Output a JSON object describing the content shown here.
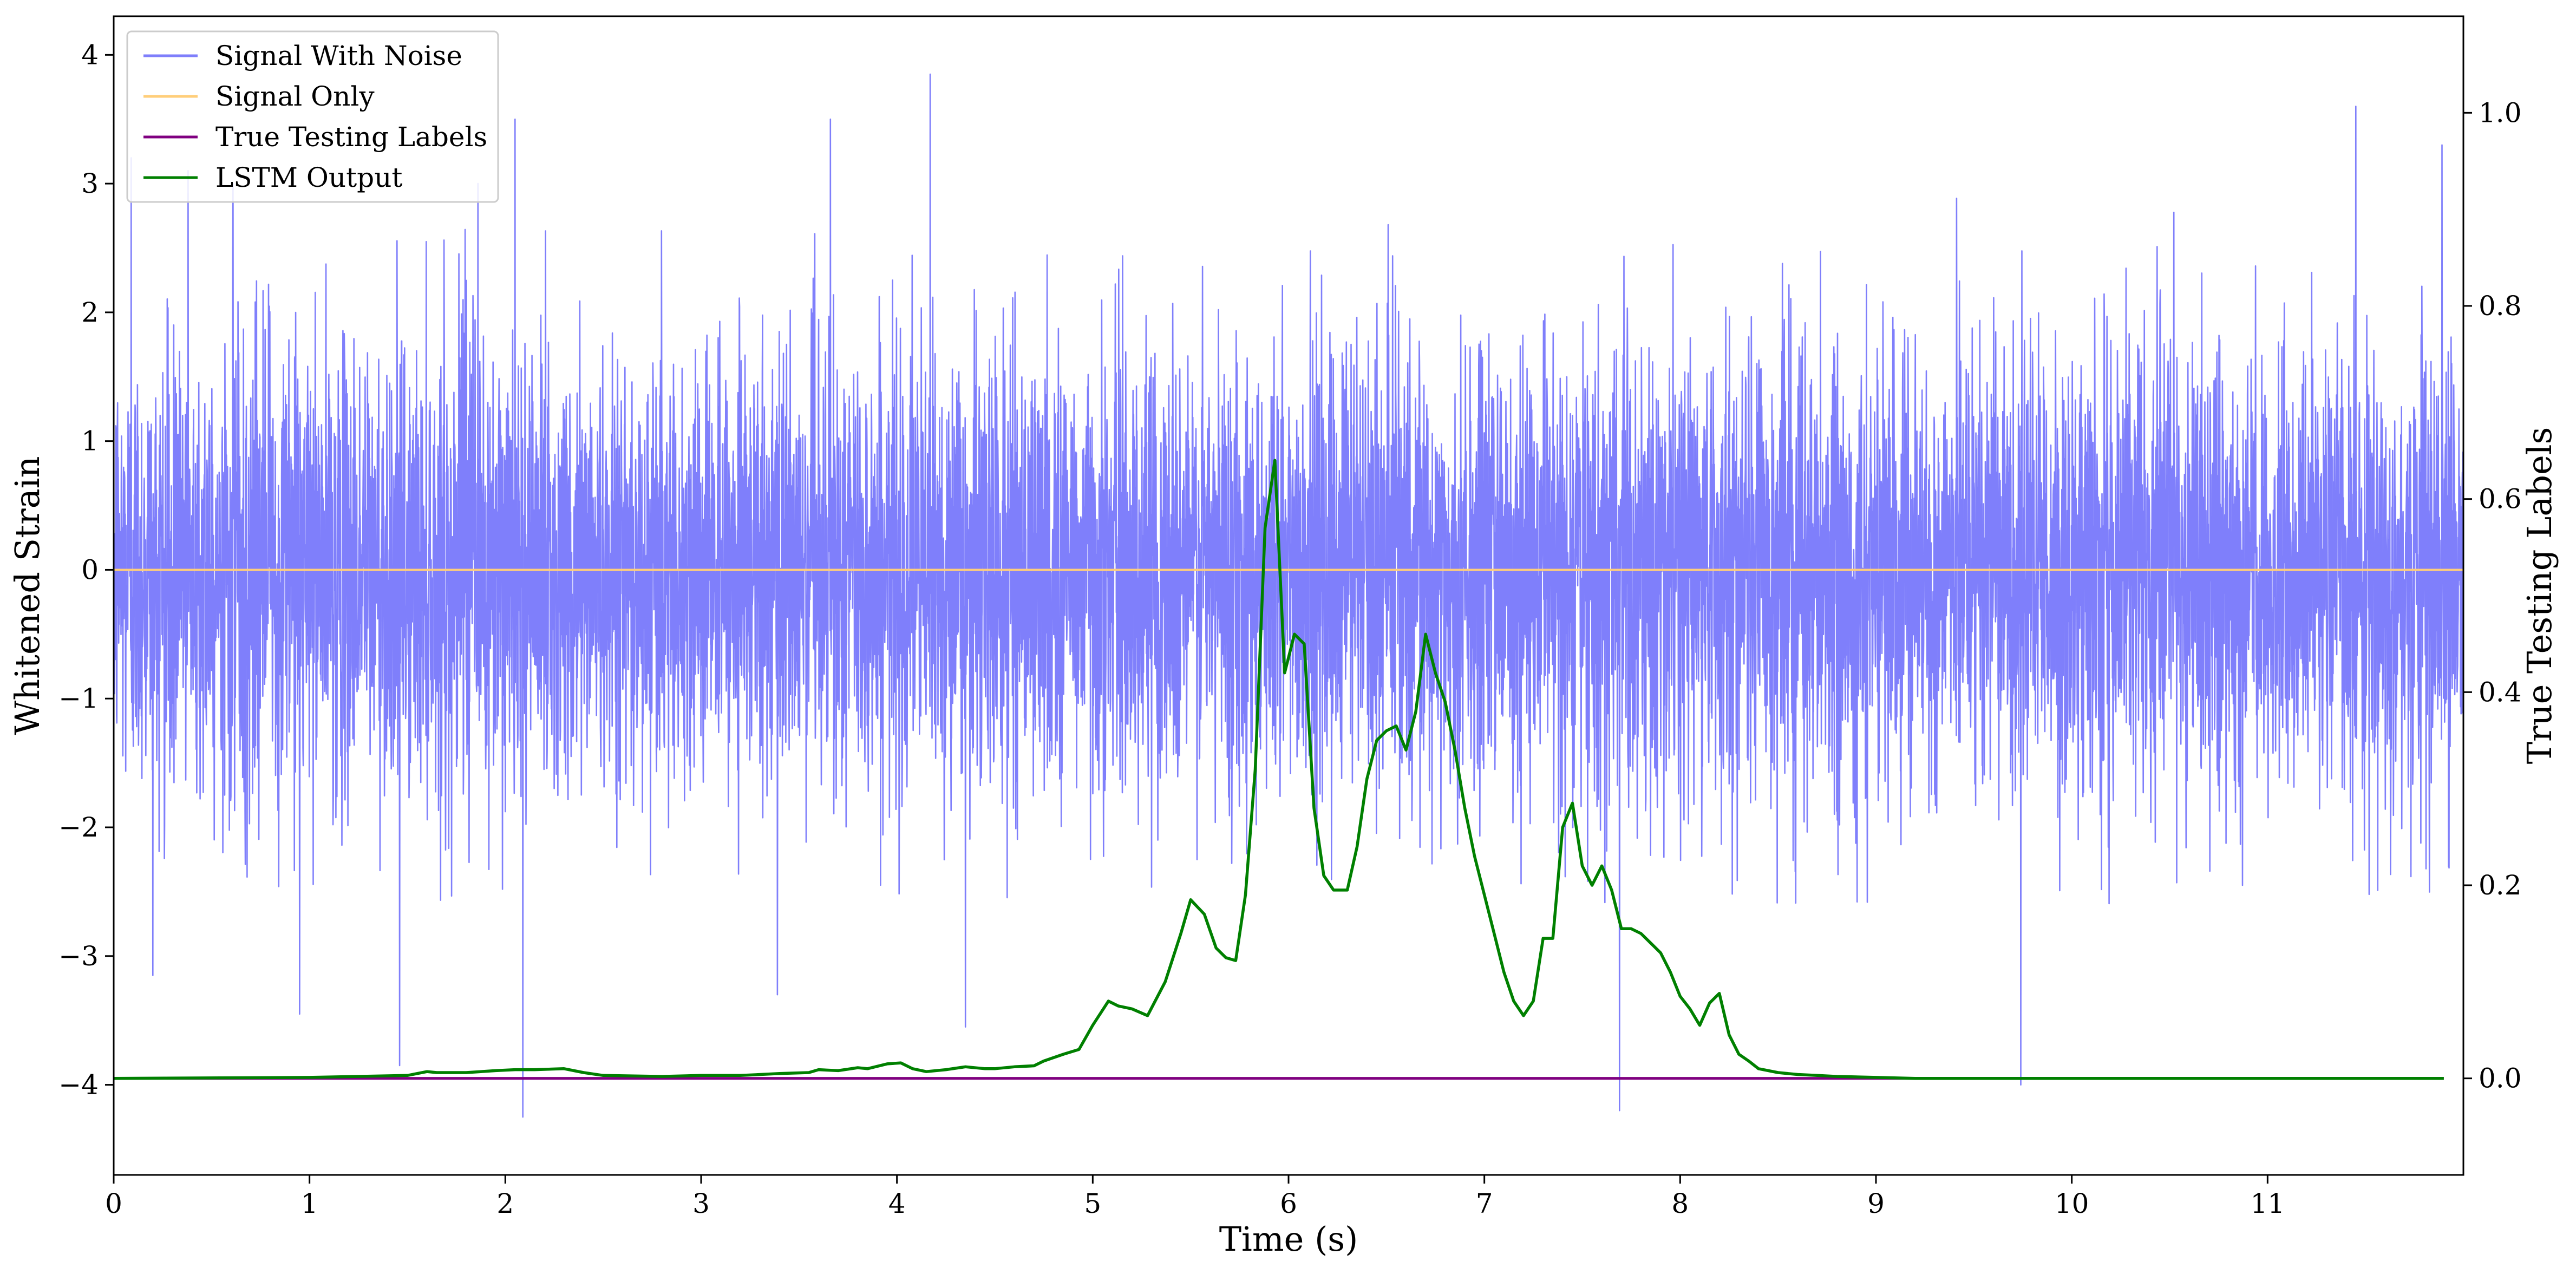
{
  "chart_data": {
    "type": "line",
    "xlabel": "Time (s)",
    "ylabel_left": "Whitened Strain",
    "ylabel_right": "True Testing Labels",
    "xlim": [
      0,
      12
    ],
    "ylim_left": [
      -4.7,
      4.3
    ],
    "ylim_right": [
      -0.1,
      1.1
    ],
    "x_ticks": [
      0,
      1,
      2,
      3,
      4,
      5,
      6,
      7,
      8,
      9,
      10,
      11
    ],
    "y_ticks_left": [
      -4,
      -3,
      -2,
      -1,
      0,
      1,
      2,
      3,
      4
    ],
    "y_ticks_right": [
      0.0,
      0.2,
      0.4,
      0.6,
      0.8,
      1.0
    ],
    "legend_position": "top-left",
    "colors": {
      "signal_with_noise": "#7f7ffb",
      "signal_only": "#ffce7a",
      "true_testing_labels": "#800080",
      "lstm_output": "#008000"
    },
    "series": [
      {
        "name": "Signal With Noise",
        "axis": "left",
        "description_values": "dense whitened noise, approx. zero-mean, unit-variance, envelope about -2.5..2.8 with spikes",
        "spikes": [
          {
            "x": 0.09,
            "y": 3.2
          },
          {
            "x": 0.38,
            "y": 3.1
          },
          {
            "x": 0.61,
            "y": 3.0
          },
          {
            "x": 0.2,
            "y": -3.15
          },
          {
            "x": 0.95,
            "y": -3.45
          },
          {
            "x": 1.46,
            "y": -3.85
          },
          {
            "x": 1.86,
            "y": 3.0
          },
          {
            "x": 2.05,
            "y": 3.5
          },
          {
            "x": 2.09,
            "y": -4.25
          },
          {
            "x": 3.66,
            "y": 3.5
          },
          {
            "x": 3.39,
            "y": -3.3
          },
          {
            "x": 4.17,
            "y": 3.85
          },
          {
            "x": 4.35,
            "y": -3.55
          },
          {
            "x": 7.69,
            "y": -4.2
          },
          {
            "x": 9.74,
            "y": -4.0
          },
          {
            "x": 11.45,
            "y": 3.6
          },
          {
            "x": 11.89,
            "y": 3.3
          }
        ]
      },
      {
        "name": "Signal Only",
        "axis": "left",
        "x": [
          0,
          12
        ],
        "y": [
          0,
          0
        ]
      },
      {
        "name": "True Testing Labels",
        "axis": "right",
        "x": [
          0,
          11.9
        ],
        "y": [
          0,
          0
        ]
      },
      {
        "name": "LSTM Output",
        "axis": "right",
        "x": [
          0,
          1.0,
          1.5,
          1.6,
          1.65,
          1.8,
          1.95,
          2.05,
          2.15,
          2.3,
          2.4,
          2.5,
          2.8,
          3.0,
          3.2,
          3.4,
          3.55,
          3.6,
          3.7,
          3.8,
          3.85,
          3.95,
          4.02,
          4.08,
          4.15,
          4.25,
          4.35,
          4.45,
          4.5,
          4.6,
          4.7,
          4.75,
          4.85,
          4.93,
          5.0,
          5.08,
          5.13,
          5.2,
          5.28,
          5.37,
          5.45,
          5.5,
          5.57,
          5.63,
          5.68,
          5.73,
          5.78,
          5.83,
          5.88,
          5.93,
          5.98,
          6.03,
          6.08,
          6.13,
          6.18,
          6.23,
          6.3,
          6.35,
          6.4,
          6.45,
          6.5,
          6.55,
          6.6,
          6.65,
          6.7,
          6.75,
          6.8,
          6.85,
          6.9,
          6.95,
          7.0,
          7.05,
          7.1,
          7.15,
          7.2,
          7.25,
          7.3,
          7.35,
          7.4,
          7.45,
          7.5,
          7.55,
          7.6,
          7.65,
          7.7,
          7.75,
          7.8,
          7.85,
          7.9,
          7.95,
          8.0,
          8.05,
          8.1,
          8.15,
          8.2,
          8.25,
          8.3,
          8.35,
          8.4,
          8.5,
          8.6,
          8.7,
          8.8,
          9.0,
          9.2,
          9.5,
          10.0,
          11.0,
          11.9
        ],
        "y": [
          0.0,
          0.001,
          0.003,
          0.007,
          0.006,
          0.006,
          0.008,
          0.009,
          0.009,
          0.01,
          0.006,
          0.003,
          0.002,
          0.003,
          0.003,
          0.005,
          0.006,
          0.009,
          0.008,
          0.011,
          0.01,
          0.015,
          0.016,
          0.01,
          0.007,
          0.009,
          0.012,
          0.01,
          0.01,
          0.012,
          0.013,
          0.018,
          0.025,
          0.03,
          0.055,
          0.08,
          0.075,
          0.072,
          0.065,
          0.1,
          0.15,
          0.185,
          0.17,
          0.135,
          0.125,
          0.122,
          0.19,
          0.32,
          0.57,
          0.64,
          0.42,
          0.46,
          0.45,
          0.28,
          0.21,
          0.195,
          0.195,
          0.24,
          0.31,
          0.35,
          0.36,
          0.365,
          0.34,
          0.38,
          0.46,
          0.42,
          0.39,
          0.34,
          0.28,
          0.23,
          0.19,
          0.15,
          0.11,
          0.08,
          0.065,
          0.08,
          0.145,
          0.145,
          0.26,
          0.285,
          0.22,
          0.2,
          0.22,
          0.195,
          0.155,
          0.155,
          0.15,
          0.14,
          0.13,
          0.11,
          0.085,
          0.072,
          0.055,
          0.078,
          0.088,
          0.045,
          0.025,
          0.018,
          0.01,
          0.006,
          0.004,
          0.003,
          0.002,
          0.001,
          0.0,
          0.0,
          0.0,
          0.0,
          0.0
        ]
      }
    ]
  }
}
